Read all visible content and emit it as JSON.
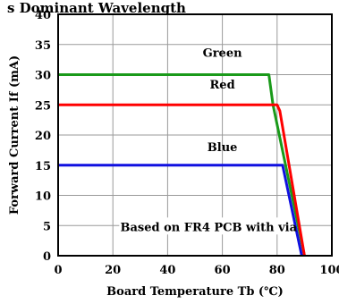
{
  "chart_data": {
    "type": "line",
    "title": "s Dominant Wavelength",
    "xlabel": "Board Temperature Tb (℃)",
    "ylabel": "Forward Current If (mA)",
    "xlim": [
      0,
      100
    ],
    "ylim": [
      0,
      40
    ],
    "xticks": [
      "0",
      "20",
      "40",
      "60",
      "80",
      "100"
    ],
    "yticks": [
      "0",
      "5",
      "10",
      "15",
      "20",
      "25",
      "30",
      "35",
      "40"
    ],
    "grid": true,
    "series": [
      {
        "name": "Green",
        "color": "#1a9a1a",
        "x": [
          0,
          77,
          78.5,
          90
        ],
        "y": [
          30,
          30,
          25,
          0
        ]
      },
      {
        "name": "Red",
        "color": "#ff0000",
        "x": [
          0,
          80,
          81,
          90
        ],
        "y": [
          25,
          25,
          24,
          0
        ]
      },
      {
        "name": "Blue",
        "color": "#1010e0",
        "x": [
          0,
          82,
          89
        ],
        "y": [
          15,
          15,
          0
        ]
      }
    ],
    "series_labels": [
      {
        "text": "Green",
        "x": 60,
        "y": 33
      },
      {
        "text": "Red",
        "x": 60,
        "y": 27.7
      },
      {
        "text": "Blue",
        "x": 60,
        "y": 17.3
      }
    ],
    "annotation": {
      "text": "Based on FR4 PCB with via",
      "x": 55,
      "y": 4.7
    }
  }
}
